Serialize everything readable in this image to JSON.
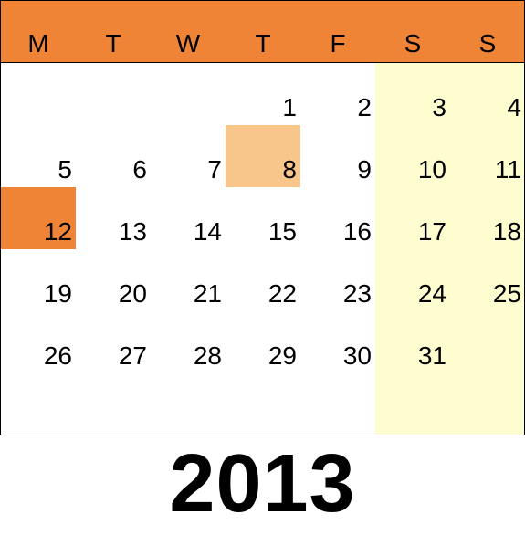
{
  "calendar": {
    "weekdays": [
      "M",
      "T",
      "W",
      "T",
      "F",
      "S",
      "S"
    ],
    "days": [
      "1",
      "2",
      "3",
      "4",
      "5",
      "6",
      "7",
      "8",
      "9",
      "10",
      "11",
      "12",
      "13",
      "14",
      "15",
      "16",
      "17",
      "18",
      "19",
      "20",
      "21",
      "22",
      "23",
      "24",
      "25",
      "26",
      "27",
      "28",
      "29",
      "30",
      "31"
    ],
    "first_weekday_index": 3,
    "highlight_light_day": "8",
    "highlight_dark_day": "12",
    "year": "2013"
  },
  "colors": {
    "header": "#ef8437",
    "weekend_band": "#fefdd0",
    "highlight_light": "#f8c68a",
    "highlight_dark": "#ef8437"
  }
}
